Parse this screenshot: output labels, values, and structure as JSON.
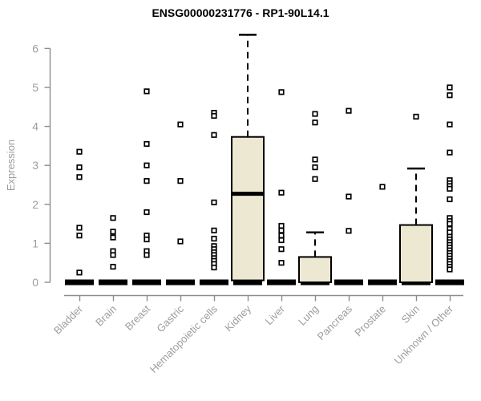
{
  "chart_data": {
    "type": "boxplot",
    "title": "ENSG00000231776 - RP1-90L14.1",
    "xlabel": "",
    "ylabel": "Expression",
    "ylim": [
      0,
      6.5
    ],
    "yticks": [
      0,
      1,
      2,
      3,
      4,
      5,
      6
    ],
    "grid": false,
    "legend": false,
    "x_tick_rotation": 45,
    "groups": [
      {
        "label": "Bladder",
        "box": {
          "q1": 0,
          "median": 0,
          "q3": 0,
          "whisker_low": 0,
          "whisker_high": 0
        },
        "outliers": [
          3.35,
          2.95,
          2.7,
          1.4,
          1.2,
          0.25
        ]
      },
      {
        "label": "Brain",
        "box": {
          "q1": 0,
          "median": 0,
          "q3": 0,
          "whisker_low": 0,
          "whisker_high": 0
        },
        "outliers": [
          1.65,
          1.3,
          1.15,
          0.8,
          0.7,
          0.4
        ]
      },
      {
        "label": "Breast",
        "box": {
          "q1": 0,
          "median": 0,
          "q3": 0,
          "whisker_low": 0,
          "whisker_high": 0
        },
        "outliers": [
          4.9,
          3.55,
          3.0,
          2.6,
          1.8,
          1.2,
          1.1,
          0.8,
          0.7
        ]
      },
      {
        "label": "Gastric",
        "box": {
          "q1": 0,
          "median": 0,
          "q3": 0,
          "whisker_low": 0,
          "whisker_high": 0
        },
        "outliers": [
          4.05,
          2.6,
          1.05
        ]
      },
      {
        "label": "Hematopoietic cells",
        "box": {
          "q1": 0,
          "median": 0,
          "q3": 0,
          "whisker_low": 0,
          "whisker_high": 0
        },
        "outliers": [
          4.35,
          4.27,
          3.78,
          2.05,
          1.33,
          1.12,
          0.93,
          0.85,
          0.77,
          0.7,
          0.62,
          0.55,
          0.47,
          0.38
        ]
      },
      {
        "label": "Kidney",
        "box": {
          "q1": 0.05,
          "median": 2.27,
          "q3": 3.73,
          "whisker_low": 0,
          "whisker_high": 6.35
        },
        "outliers": []
      },
      {
        "label": "Liver",
        "box": {
          "q1": 0,
          "median": 0,
          "q3": 0,
          "whisker_low": 0,
          "whisker_high": 0
        },
        "outliers": [
          4.88,
          2.3,
          1.45,
          1.33,
          1.2,
          1.08,
          0.85,
          0.5
        ]
      },
      {
        "label": "Lung",
        "box": {
          "q1": 0,
          "median": 0,
          "q3": 0.65,
          "whisker_low": 0,
          "whisker_high": 1.28
        },
        "outliers": [
          4.32,
          4.1,
          3.15,
          2.95,
          2.65
        ]
      },
      {
        "label": "Pancreas",
        "box": {
          "q1": 0,
          "median": 0,
          "q3": 0,
          "whisker_low": 0,
          "whisker_high": 0
        },
        "outliers": [
          4.4,
          2.2,
          1.32
        ]
      },
      {
        "label": "Prostate",
        "box": {
          "q1": 0,
          "median": 0,
          "q3": 0,
          "whisker_low": 0,
          "whisker_high": 0
        },
        "outliers": [
          2.45
        ]
      },
      {
        "label": "Skin",
        "box": {
          "q1": 0,
          "median": 0,
          "q3": 1.47,
          "whisker_low": 0,
          "whisker_high": 2.92
        },
        "outliers": [
          4.25
        ]
      },
      {
        "label": "Unknown / Other",
        "box": {
          "q1": 0,
          "median": 0,
          "q3": 0,
          "whisker_low": 0,
          "whisker_high": 0
        },
        "outliers": [
          5.0,
          4.8,
          4.05,
          3.33,
          2.62,
          2.54,
          2.47,
          2.4,
          2.13,
          1.65,
          1.57,
          1.5,
          1.37,
          1.28,
          1.17,
          1.1,
          1.03,
          0.96,
          0.89,
          0.82,
          0.75,
          0.68,
          0.61,
          0.54,
          0.47,
          0.4,
          0.33
        ]
      }
    ]
  },
  "colors": {
    "box_fill": "#ece8d2",
    "box_stroke": "#000000",
    "axis": "#8c8c8c",
    "tick_label": "#9a9da1",
    "title": "#000000",
    "marker": "#000000",
    "background": "#ffffff"
  }
}
